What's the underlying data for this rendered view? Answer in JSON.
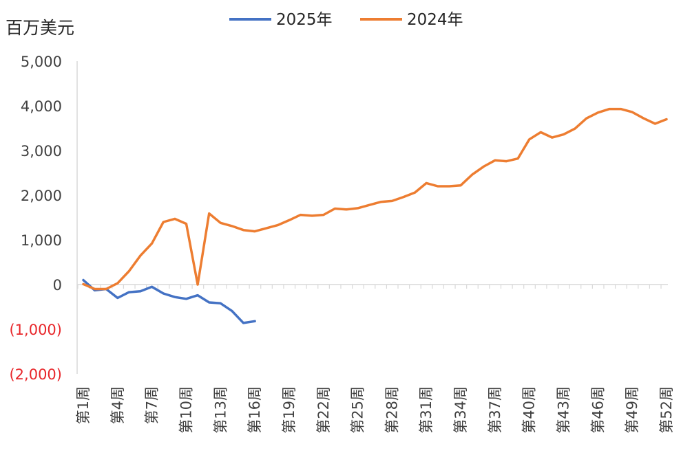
{
  "chart_data": {
    "type": "line",
    "ylabel": "百万美元",
    "ylim": [
      -2000,
      5000
    ],
    "yticks": [
      {
        "value": 5000,
        "label": "5,000"
      },
      {
        "value": 4000,
        "label": "4,000"
      },
      {
        "value": 3000,
        "label": "3,000"
      },
      {
        "value": 2000,
        "label": "2,000"
      },
      {
        "value": 1000,
        "label": "1,000"
      },
      {
        "value": 0,
        "label": "0"
      },
      {
        "value": -1000,
        "label": "(1,000)"
      },
      {
        "value": -2000,
        "label": "(2,000)"
      }
    ],
    "negative_label_color": "#e8262a",
    "grid": false,
    "legend_position": "top-center",
    "x_tick_labels": [
      "第1周",
      "第4周",
      "第7周",
      "第10周",
      "第13周",
      "第16周",
      "第19周",
      "第22周",
      "第25周",
      "第28周",
      "第31周",
      "第34周",
      "第37周",
      "第40周",
      "第43周",
      "第46周",
      "第49周",
      "第52周"
    ],
    "x_tick_weeks": [
      1,
      4,
      7,
      10,
      13,
      16,
      19,
      22,
      25,
      28,
      31,
      34,
      37,
      40,
      43,
      46,
      49,
      52
    ],
    "series": [
      {
        "name": "2025年",
        "color": "#4472c4",
        "weeks": [
          1,
          2,
          3,
          4,
          5,
          6,
          7,
          8,
          9,
          10,
          11,
          12,
          13,
          14,
          15,
          16
        ],
        "values": [
          100,
          -130,
          -100,
          -300,
          -170,
          -150,
          -50,
          -200,
          -280,
          -320,
          -240,
          -400,
          -420,
          -590,
          -860,
          -820
        ]
      },
      {
        "name": "2024年",
        "color": "#ed7d31",
        "weeks": [
          1,
          2,
          3,
          4,
          5,
          6,
          7,
          8,
          9,
          10,
          11,
          12,
          13,
          14,
          15,
          16,
          17,
          18,
          19,
          20,
          21,
          22,
          23,
          24,
          25,
          26,
          27,
          28,
          29,
          30,
          31,
          32,
          33,
          34,
          35,
          36,
          37,
          38,
          39,
          40,
          41,
          42,
          43,
          44,
          45,
          46,
          47,
          48,
          49,
          50,
          51,
          52
        ],
        "values": [
          10,
          -100,
          -100,
          30,
          300,
          650,
          920,
          1400,
          1470,
          1360,
          0,
          1590,
          1380,
          1310,
          1220,
          1190,
          1260,
          1330,
          1440,
          1560,
          1540,
          1560,
          1700,
          1680,
          1710,
          1780,
          1850,
          1870,
          1960,
          2060,
          2270,
          2200,
          2200,
          2220,
          2460,
          2640,
          2780,
          2760,
          2820,
          3250,
          3410,
          3290,
          3360,
          3490,
          3720,
          3850,
          3930,
          3930,
          3860,
          3720,
          3600,
          3700
        ]
      }
    ]
  }
}
